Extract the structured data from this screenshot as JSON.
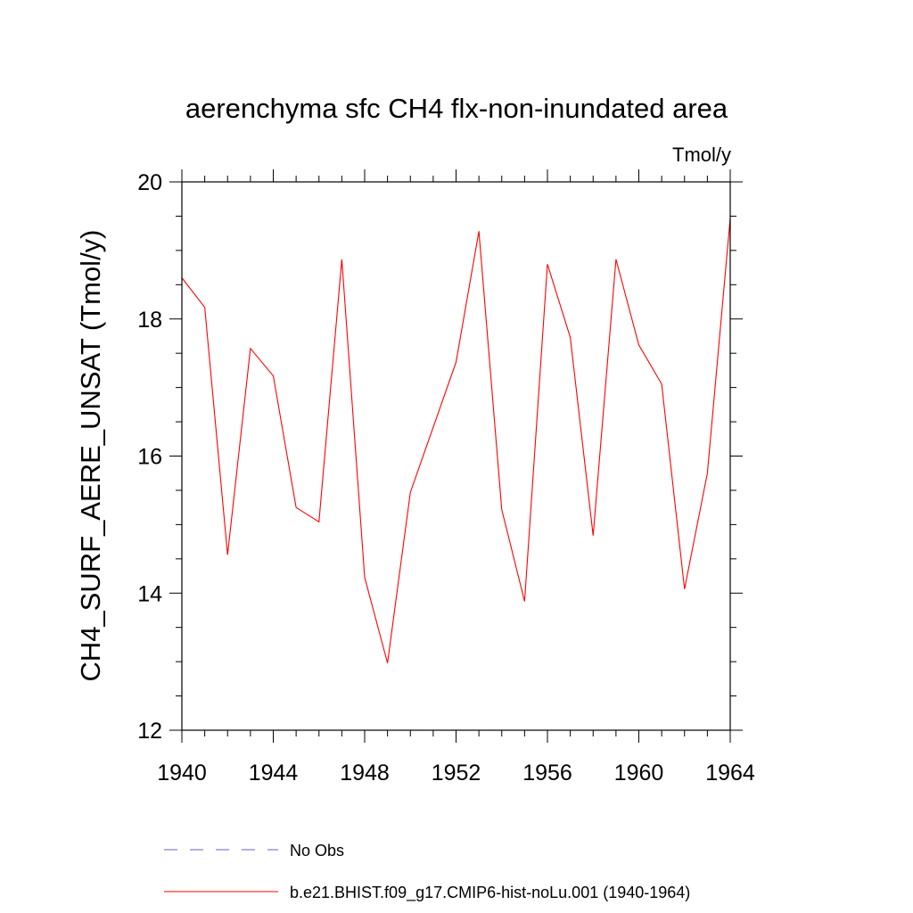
{
  "chart_data": {
    "type": "line",
    "title": "aerenchyma sfc CH4 flx-non-inundated area",
    "units_label": "Tmol/y",
    "ylabel": "CH4_SURF_AERE_UNSAT  (Tmol/y)",
    "xlabel": "",
    "xlim": [
      1940,
      1964
    ],
    "ylim": [
      12,
      20
    ],
    "x_ticks": [
      1940,
      1944,
      1948,
      1952,
      1956,
      1960,
      1964
    ],
    "x_minor_step": 1,
    "y_ticks": [
      12,
      14,
      16,
      18,
      20
    ],
    "y_minor_step": 0.5,
    "grid": false,
    "legend_position": "bottom",
    "x": [
      1940,
      1941,
      1942,
      1943,
      1944,
      1945,
      1946,
      1947,
      1948,
      1949,
      1950,
      1951,
      1952,
      1953,
      1954,
      1955,
      1956,
      1957,
      1958,
      1959,
      1960,
      1961,
      1962,
      1963,
      1964
    ],
    "series": [
      {
        "name": "b.e21.BHIST.f09_g17.CMIP6-hist-noLu.001 (1940-1964)",
        "color": "#ff0000",
        "dash": "solid",
        "values": [
          18.6,
          18.17,
          14.56,
          17.57,
          17.17,
          15.25,
          15.04,
          18.87,
          14.23,
          12.98,
          15.47,
          16.42,
          17.37,
          19.28,
          15.22,
          13.88,
          18.8,
          17.73,
          14.84,
          18.87,
          17.62,
          17.05,
          14.06,
          15.75,
          19.47
        ]
      }
    ],
    "legend": [
      {
        "label": "No Obs",
        "color": "#6666bb",
        "dash": "dashed"
      },
      {
        "label": "b.e21.BHIST.f09_g17.CMIP6-hist-noLu.001 (1940-1964)",
        "color": "#ff0000",
        "dash": "solid"
      }
    ]
  }
}
